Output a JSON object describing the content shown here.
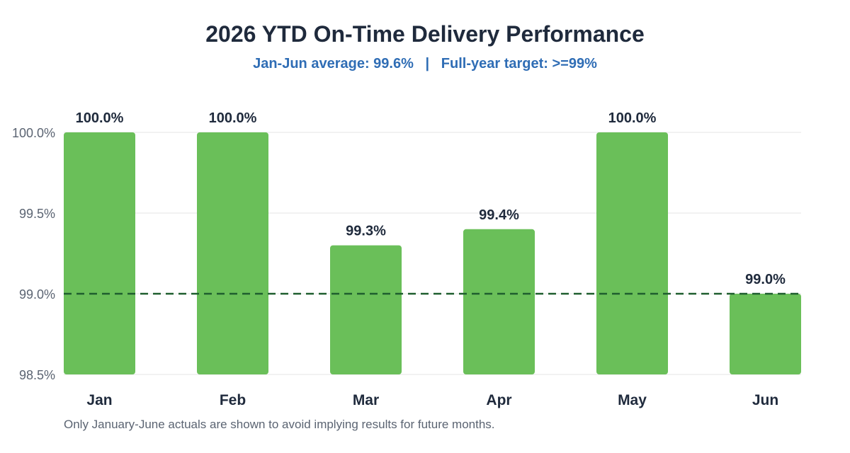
{
  "chart_data": {
    "type": "bar",
    "title": "2026 YTD On-Time Delivery Performance",
    "subtitle": "Jan-Jun average: 99.6%   |   Full-year target: >=99%",
    "categories": [
      "Jan",
      "Feb",
      "Mar",
      "Apr",
      "May",
      "Jun"
    ],
    "values": [
      100.0,
      100.0,
      99.3,
      99.4,
      100.0,
      99.0
    ],
    "value_labels": [
      "100.0%",
      "100.0%",
      "99.3%",
      "99.4%",
      "100.0%",
      "99.0%"
    ],
    "ylim": [
      98.5,
      100.0
    ],
    "yticks": [
      98.5,
      99.0,
      99.5,
      100.0
    ],
    "ytick_labels": [
      "98.5%",
      "99.0%",
      "99.5%",
      "100.0%"
    ],
    "target": 99.0,
    "xlabel": "",
    "ylabel": "",
    "grid": true,
    "colors": {
      "bar": "#6abf59",
      "target_line": "#1e5e2e",
      "grid": "#e6e6e6",
      "value_label": "#1f2a3c",
      "tick_label": "#5b6472",
      "category_label": "#1f2a3c"
    },
    "footnote": "Only January-June actuals are shown to avoid implying results for future months."
  }
}
